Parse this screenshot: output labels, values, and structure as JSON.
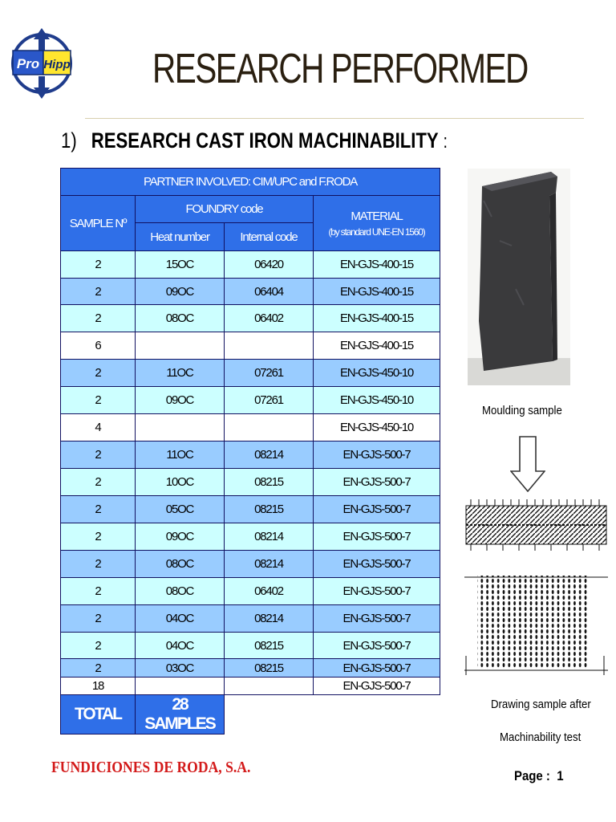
{
  "logo": {
    "text_left": "Pro",
    "text_right": "Hipp"
  },
  "title": "RESEARCH PERFORMED",
  "section": {
    "number": "1)",
    "heading": "RESEARCH CAST IRON MACHINABILITY",
    "colon": ":"
  },
  "table": {
    "partner": "PARTNER INVOLVED: CIM/UPC and F.RODA",
    "headers": {
      "sample": "SAMPLE Nº",
      "foundry": "FOUNDRY code",
      "heat": "Heat number",
      "internal": "Internal code",
      "material": "MATERIAL",
      "material_note": "(by standard UNE-EN 1560)"
    },
    "rows": [
      {
        "sample": "2",
        "heat": "15OC",
        "internal": "06420",
        "material": "EN-GJS-400-15"
      },
      {
        "sample": "2",
        "heat": "09OC",
        "internal": "06404",
        "material": "EN-GJS-400-15"
      },
      {
        "sample": "2",
        "heat": "08OC",
        "internal": "06402",
        "material": "EN-GJS-400-15"
      },
      {
        "sample": "6",
        "heat": "",
        "internal": "",
        "material": "EN-GJS-400-15"
      },
      {
        "sample": "2",
        "heat": "11OC",
        "internal": "07261",
        "material": "EN-GJS-450-10"
      },
      {
        "sample": "2",
        "heat": "09OC",
        "internal": "07261",
        "material": "EN-GJS-450-10"
      },
      {
        "sample": "4",
        "heat": "",
        "internal": "",
        "material": "EN-GJS-450-10"
      },
      {
        "sample": "2",
        "heat": "11OC",
        "internal": "08214",
        "material": "EN-GJS-500-7"
      },
      {
        "sample": "2",
        "heat": "10OC",
        "internal": "08215",
        "material": "EN-GJS-500-7"
      },
      {
        "sample": "2",
        "heat": "05OC",
        "internal": "08215",
        "material": "EN-GJS-500-7"
      },
      {
        "sample": "2",
        "heat": "09OC",
        "internal": "08214",
        "material": "EN-GJS-500-7"
      },
      {
        "sample": "2",
        "heat": "08OC",
        "internal": "08214",
        "material": "EN-GJS-500-7"
      },
      {
        "sample": "2",
        "heat": "08OC",
        "internal": "06402",
        "material": "EN-GJS-500-7"
      },
      {
        "sample": "2",
        "heat": "04OC",
        "internal": "08214",
        "material": "EN-GJS-500-7"
      },
      {
        "sample": "2",
        "heat": "04OC",
        "internal": "08215",
        "material": "EN-GJS-500-7"
      },
      {
        "sample": "2",
        "heat": "03OC",
        "internal": "08215",
        "material": "EN-GJS-500-7"
      },
      {
        "sample": "18",
        "heat": "",
        "internal": "",
        "material": "EN-GJS-500-7"
      }
    ],
    "total_label": "TOTAL",
    "total_value": "28 SAMPLES"
  },
  "right": {
    "caption_moulding": "Moulding sample",
    "caption_drawing_1": "Drawing sample after",
    "caption_drawing_2": "Machinability test"
  },
  "footer": {
    "company": "FUNDICIONES DE RODA, S.A.",
    "page_label": "Page :",
    "page_number": "1"
  },
  "colors": {
    "header_blue": "#2f6fe8",
    "row_cyan": "#ccffff",
    "row_blue": "#99ccff",
    "company_red": "#d31a1a"
  }
}
